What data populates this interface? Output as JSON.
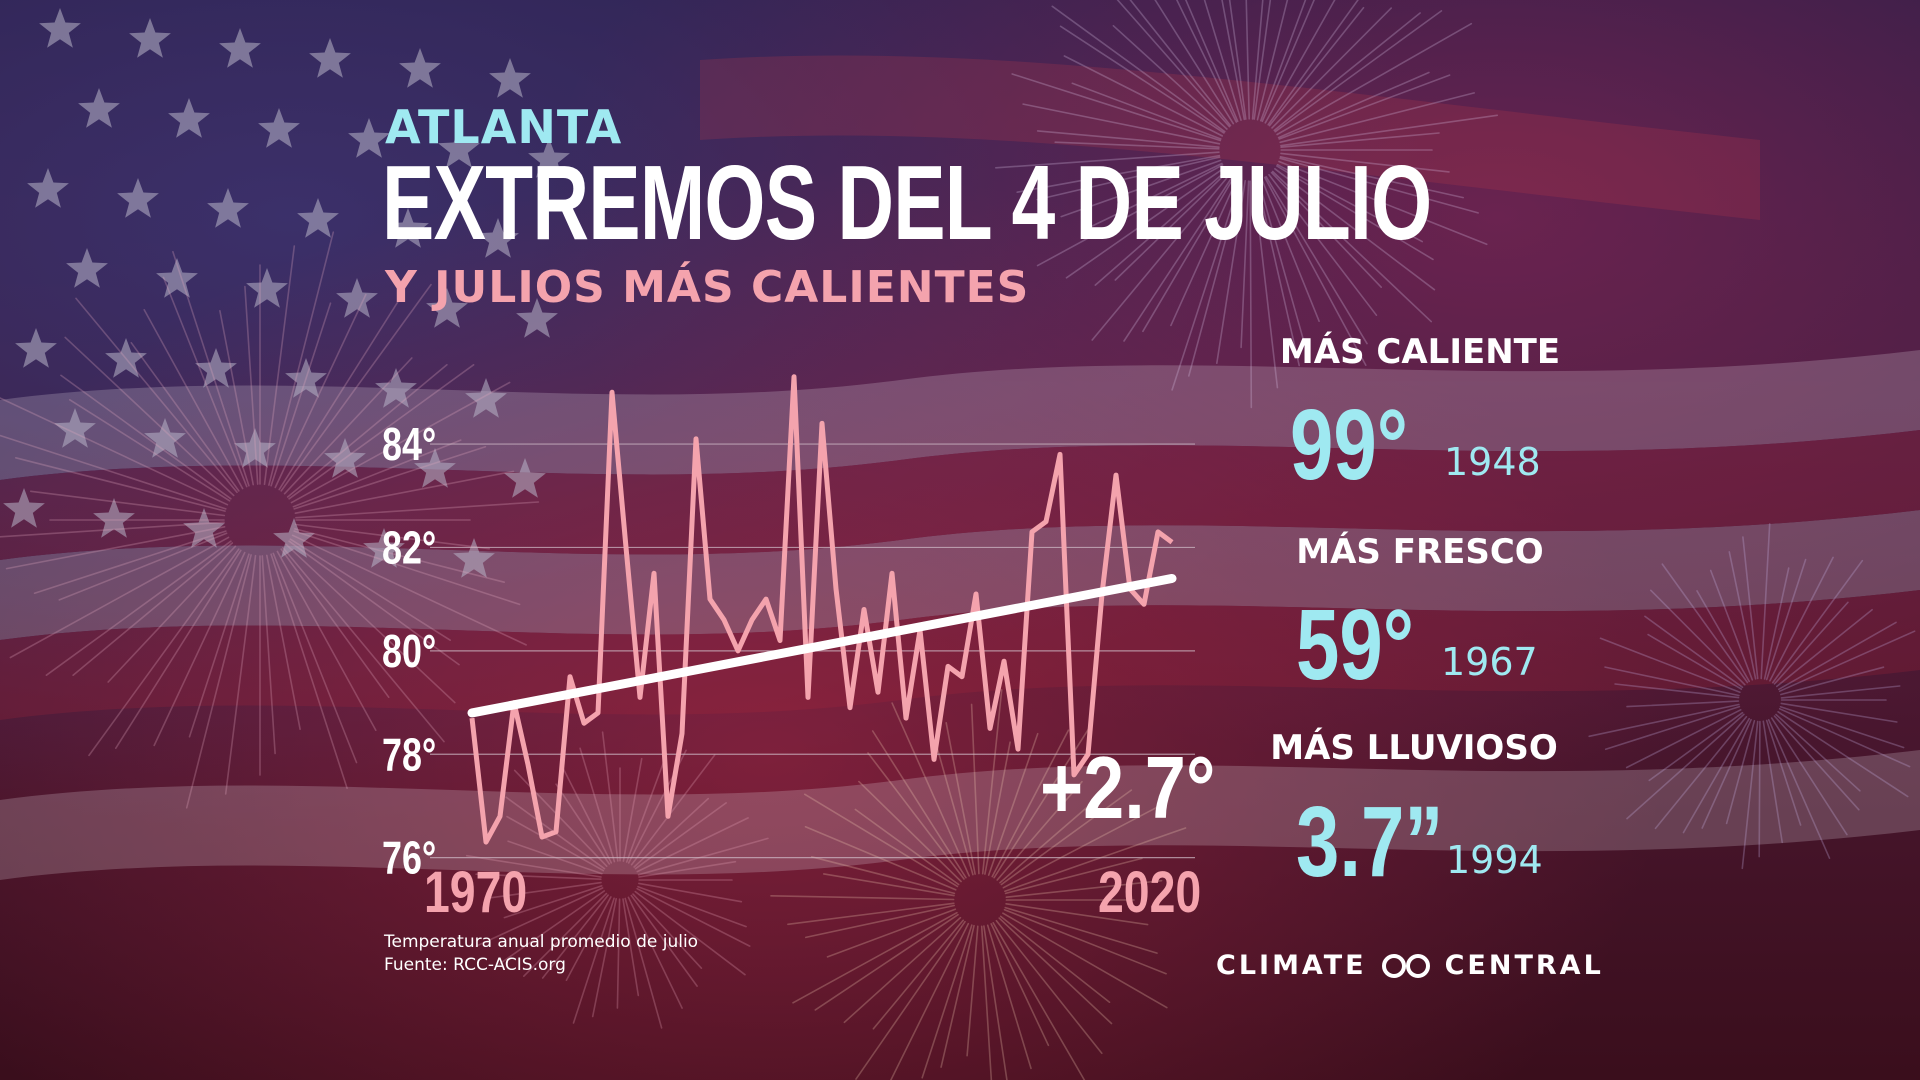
{
  "header": {
    "city": "ATLANTA",
    "title": "EXTREMOS DEL 4 DE JULIO",
    "subtitle": "Y JULIOS MÁS CALIENTES"
  },
  "chart_data": {
    "type": "line",
    "y_ticks": [
      "84°",
      "82°",
      "80°",
      "78°",
      "76°"
    ],
    "y_tick_values": [
      84,
      82,
      80,
      78,
      76
    ],
    "ylim": [
      75.8,
      85.2
    ],
    "x_labels": [
      "1970",
      "2020"
    ],
    "xlim": [
      1970,
      2020
    ],
    "x": [
      1970,
      1971,
      1972,
      1973,
      1974,
      1975,
      1976,
      1977,
      1978,
      1979,
      1980,
      1981,
      1982,
      1983,
      1984,
      1985,
      1986,
      1987,
      1988,
      1989,
      1990,
      1991,
      1992,
      1993,
      1994,
      1995,
      1996,
      1997,
      1998,
      1999,
      2000,
      2001,
      2002,
      2003,
      2004,
      2005,
      2006,
      2007,
      2008,
      2009,
      2010,
      2011,
      2012,
      2013,
      2014,
      2015,
      2016,
      2017,
      2018,
      2019,
      2020
    ],
    "series": [
      {
        "values": [
          78.7,
          76.3,
          76.8,
          79.0,
          77.8,
          76.4,
          76.5,
          79.5,
          78.6,
          78.8,
          85.0,
          82.0,
          79.1,
          81.5,
          76.8,
          78.4,
          84.1,
          81.0,
          80.6,
          80.0,
          80.6,
          81.0,
          80.2,
          85.3,
          79.1,
          84.4,
          81.2,
          78.9,
          80.8,
          79.2,
          81.5,
          78.7,
          80.4,
          77.9,
          79.7,
          79.5,
          81.1,
          78.5,
          79.8,
          78.1,
          82.3,
          82.5,
          83.8,
          77.6,
          78.0,
          81.1,
          83.4,
          81.2,
          80.9,
          82.3,
          82.1
        ]
      }
    ],
    "trend": {
      "start": [
        1970,
        78.8
      ],
      "end": [
        2020,
        81.4
      ]
    },
    "change_label": "+2.7°",
    "colors": {
      "line": "#f4a3ad",
      "trend": "#ffffff",
      "grid": "#d0bcc8"
    }
  },
  "notes": {
    "description": "Temperatura anual promedio de julio",
    "source": "Fuente:  RCC-ACIS.org"
  },
  "records": [
    {
      "label": "MÁS CALIENTE",
      "value": "99°",
      "year": "1948"
    },
    {
      "label": "MÁS FRESCO",
      "value": "59°",
      "year": "1967"
    },
    {
      "label": "MÁS LLUVIOSO",
      "value": "3.7”",
      "year": "1994"
    }
  ],
  "brand": {
    "left": "CLIMATE",
    "right": "CENTRAL",
    "icon": "climate-central-logo-icon"
  },
  "colors": {
    "accent_cyan": "#9fe9f1",
    "accent_pink": "#f4a3ad"
  }
}
